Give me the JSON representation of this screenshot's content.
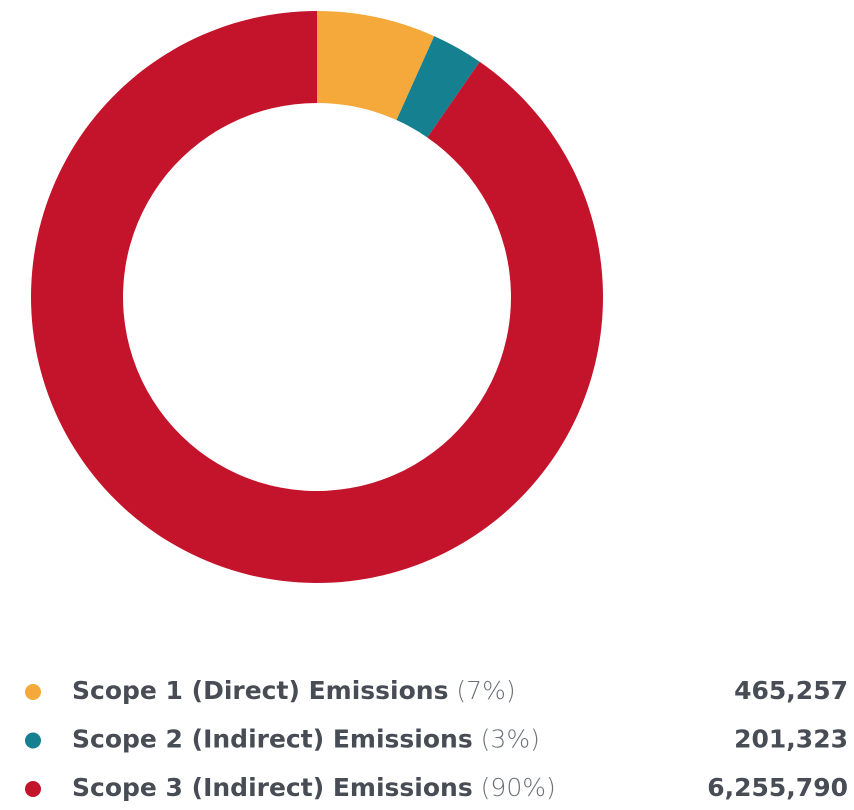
{
  "chart_data": {
    "type": "donut",
    "categories": [
      "Scope 1 (Direct) Emissions",
      "Scope 2 (Indirect) Emissions",
      "Scope 3 (Indirect) Emissions"
    ],
    "values": [
      465257,
      201323,
      6255790
    ],
    "value_labels": [
      "465,257",
      "201,323",
      "6,255,790"
    ],
    "percents": [
      7,
      3,
      90
    ],
    "percent_labels": [
      "(7%)",
      "(3%)",
      "(90%)"
    ],
    "colors": [
      "#f5a93a",
      "#15808f",
      "#c4142c"
    ]
  }
}
